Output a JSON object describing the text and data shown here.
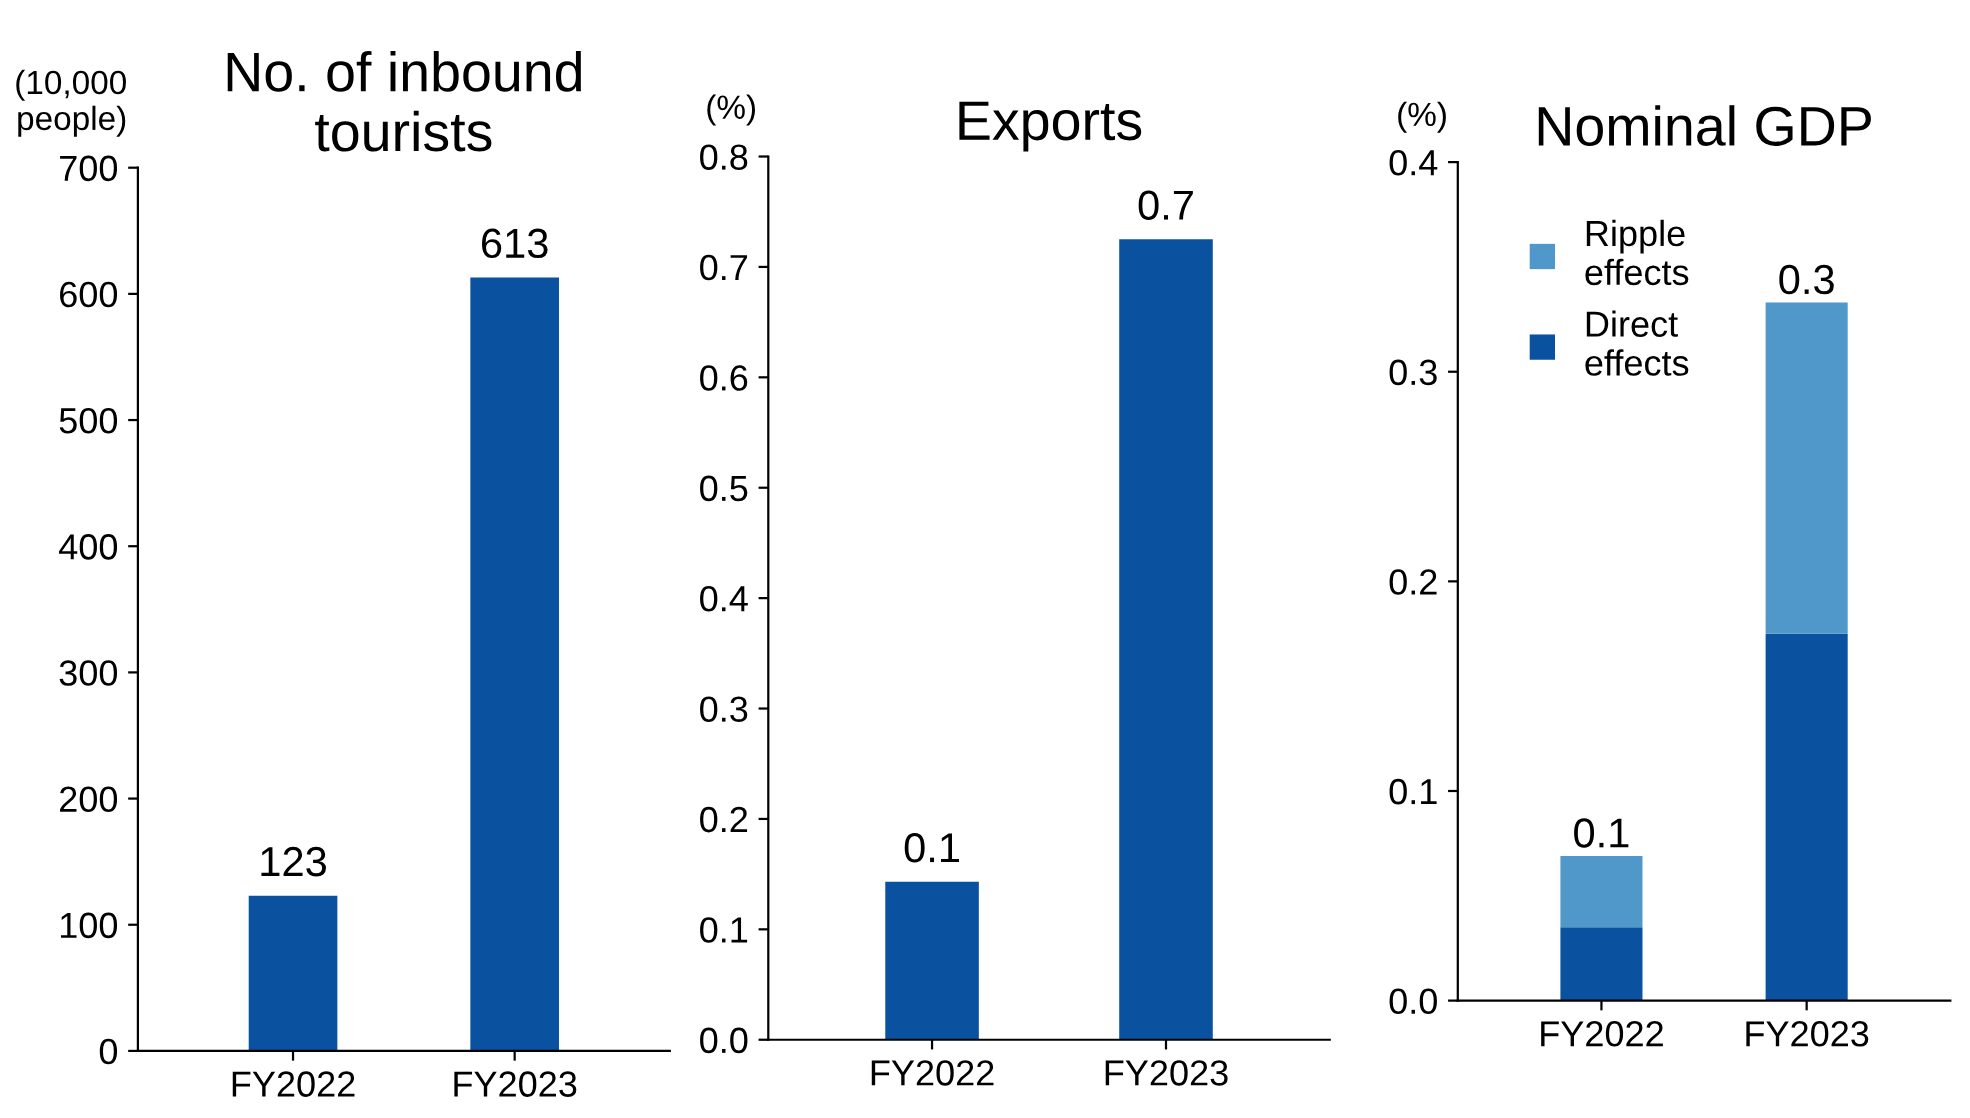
{
  "chart_data": [
    {
      "type": "bar",
      "title": "No. of inbound\ntourists",
      "ylabel": "(10,000\npeople)",
      "categories": [
        "FY2022",
        "FY2023"
      ],
      "values": [
        123,
        613
      ],
      "color": "#0a52a0",
      "data_labels": true,
      "ylim": [
        0,
        700
      ],
      "yticks": [
        0,
        100,
        200,
        300,
        400,
        500,
        600,
        700
      ],
      "grid": false,
      "legend": false
    },
    {
      "type": "bar",
      "title": "Exports",
      "ylabel": "(%)",
      "categories": [
        "FY2022",
        "FY2023"
      ],
      "values": [
        0.143,
        0.725
      ],
      "value_labels": [
        "0.1",
        "0.7"
      ],
      "color": "#0a52a0",
      "ylim": [
        0,
        0.8
      ],
      "yticks": [
        {
          "value": 0,
          "label": "0.0"
        },
        0.1,
        0.2,
        0.3,
        0.4,
        0.5,
        0.6,
        0.7,
        0.8
      ],
      "grid": false,
      "legend": false
    },
    {
      "type": "bar",
      "title": "Nominal GDP",
      "ylabel": "(%)",
      "categories": [
        "FY2022",
        "FY2023"
      ],
      "stacked": true,
      "series": [
        {
          "name": "Direct\neffects",
          "color": "#0a52a0",
          "values": [
            0.035,
            0.175
          ]
        },
        {
          "name": "Ripple\neffects",
          "color": "#4f98c9",
          "values": [
            0.034,
            0.158
          ]
        }
      ],
      "totals": [
        "0.1",
        "0.3"
      ],
      "ylim": [
        0,
        0.4
      ],
      "yticks": [
        {
          "value": 0,
          "label": "0.0"
        },
        0.1,
        0.2,
        0.3,
        0.4
      ],
      "grid": false,
      "legend": "top left"
    }
  ]
}
